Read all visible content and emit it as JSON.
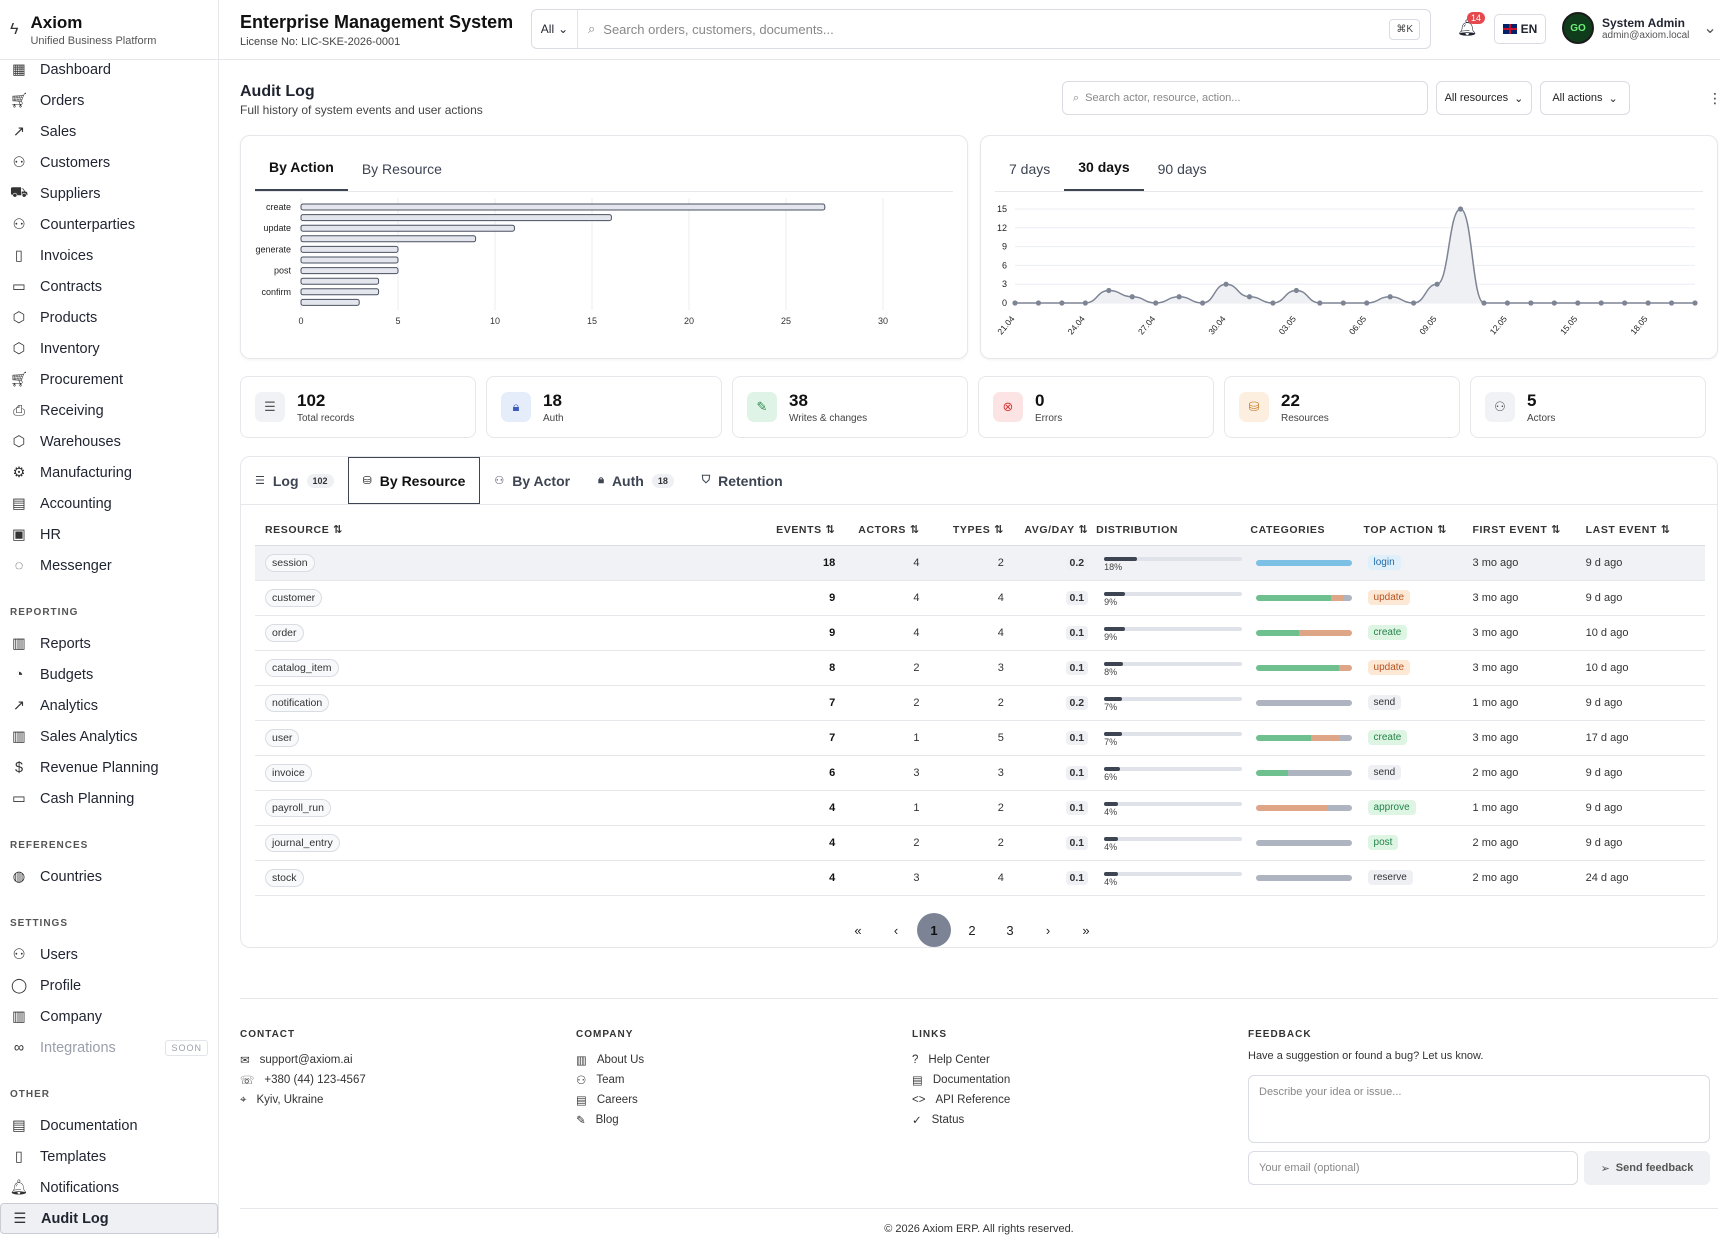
{
  "brand": {
    "name": "Axiom",
    "tagline": "Unified Business Platform"
  },
  "header": {
    "title": "Enterprise Management System",
    "license": "License No: LIC-SKE-2026-0001",
    "scope": "All",
    "search_placeholder": "Search orders, customers, documents...",
    "shortcut": "⌘K",
    "notifications": "14",
    "lang": "EN",
    "user_name": "System Admin",
    "user_email": "admin@axiom.local"
  },
  "nav": {
    "main": [
      "Dashboard",
      "Orders",
      "Sales",
      "Customers",
      "Suppliers",
      "Counterparties",
      "Invoices",
      "Contracts",
      "Products",
      "Inventory",
      "Procurement",
      "Receiving",
      "Warehouses",
      "Manufacturing",
      "Accounting",
      "HR",
      "Messenger"
    ],
    "reporting_label": "REPORTING",
    "reporting": [
      "Reports",
      "Budgets",
      "Analytics",
      "Sales Analytics",
      "Revenue Planning",
      "Cash Planning"
    ],
    "references_label": "REFERENCES",
    "references": [
      "Countries"
    ],
    "settings_label": "SETTINGS",
    "settings": [
      "Users",
      "Profile",
      "Company",
      "Integrations"
    ],
    "soon": "SOON",
    "other_label": "OTHER",
    "other": [
      "Documentation",
      "Templates",
      "Notifications",
      "Audit Log"
    ]
  },
  "page": {
    "title": "Audit Log",
    "subtitle": "Full history of system events and user actions",
    "search_placeholder": "Search actor, resource, action...",
    "resources_filter": "All resources",
    "actions_filter": "All actions"
  },
  "chart_tabs": {
    "left": [
      "By Action",
      "By Resource"
    ],
    "right": [
      "7 days",
      "30 days",
      "90 days"
    ]
  },
  "chart_data": [
    {
      "type": "bar",
      "orientation": "horizontal",
      "values": [
        27,
        16,
        11,
        9,
        5,
        5,
        5,
        4,
        4,
        3
      ],
      "categories": [
        "create",
        "",
        "update",
        "",
        "generate",
        "",
        "post",
        "",
        "confirm",
        ""
      ],
      "xlim": [
        0,
        30
      ],
      "xticks": [
        0,
        5,
        10,
        15,
        20,
        25,
        30
      ]
    },
    {
      "type": "area",
      "x": [
        "21.04",
        "",
        "",
        "24.04",
        "",
        "",
        "27.04",
        "",
        "",
        "30.04",
        "",
        "",
        "03.05",
        "",
        "",
        "06.05",
        "",
        "",
        "09.05",
        "",
        "",
        "12.05",
        "",
        "",
        "15.05",
        "",
        "",
        "18.05",
        "",
        ""
      ],
      "values": [
        0,
        0,
        0,
        0,
        2,
        1,
        0,
        1,
        0,
        3,
        1,
        0,
        2,
        0,
        0,
        0,
        1,
        0,
        3,
        15,
        0,
        0,
        0,
        0,
        0,
        0,
        0,
        0,
        0,
        0
      ],
      "ylim": [
        0,
        15
      ],
      "yticks": [
        0,
        3,
        6,
        9,
        12,
        15
      ]
    }
  ],
  "stats": [
    {
      "value": "102",
      "label": "Total records"
    },
    {
      "value": "18",
      "label": "Auth"
    },
    {
      "value": "38",
      "label": "Writes & changes"
    },
    {
      "value": "0",
      "label": "Errors"
    },
    {
      "value": "22",
      "label": "Resources"
    },
    {
      "value": "5",
      "label": "Actors"
    }
  ],
  "tabs": [
    {
      "label": "Log",
      "count": "102"
    },
    {
      "label": "By Resource",
      "count": ""
    },
    {
      "label": "By Actor",
      "count": ""
    },
    {
      "label": "Auth",
      "count": "18"
    },
    {
      "label": "Retention",
      "count": ""
    }
  ],
  "table": {
    "headers": [
      "RESOURCE",
      "EVENTS",
      "ACTORS",
      "TYPES",
      "AVG/DAY",
      "DISTRIBUTION",
      "CATEGORIES",
      "TOP ACTION",
      "FIRST EVENT",
      "LAST EVENT"
    ],
    "rows": [
      {
        "resource": "session",
        "events": "18",
        "actors": "4",
        "types": "2",
        "avg": "0.2",
        "pct": "18%",
        "pctv": 18,
        "action": "login",
        "atype": "blue",
        "first": "3 mo ago",
        "last": "9 d ago",
        "cats": [
          [
            "#7cc0e6",
            100
          ]
        ]
      },
      {
        "resource": "customer",
        "events": "9",
        "actors": "4",
        "types": "4",
        "avg": "0.1",
        "pct": "9%",
        "pctv": 9,
        "action": "update",
        "atype": "orange",
        "first": "3 mo ago",
        "last": "9 d ago",
        "cats": [
          [
            "#6fc08f",
            78
          ],
          [
            "#dea586",
            12
          ],
          [
            "#aeb4c0",
            10
          ]
        ]
      },
      {
        "resource": "order",
        "events": "9",
        "actors": "4",
        "types": "4",
        "avg": "0.1",
        "pct": "9%",
        "pctv": 9,
        "action": "create",
        "atype": "green",
        "first": "3 mo ago",
        "last": "10 d ago",
        "cats": [
          [
            "#6fc08f",
            44
          ],
          [
            "#dea586",
            56
          ]
        ]
      },
      {
        "resource": "catalog_item",
        "events": "8",
        "actors": "2",
        "types": "3",
        "avg": "0.1",
        "pct": "8%",
        "pctv": 8,
        "action": "update",
        "atype": "orange",
        "first": "3 mo ago",
        "last": "10 d ago",
        "cats": [
          [
            "#6fc08f",
            86
          ],
          [
            "#dea586",
            14
          ]
        ]
      },
      {
        "resource": "notification",
        "events": "7",
        "actors": "2",
        "types": "2",
        "avg": "0.2",
        "pct": "7%",
        "pctv": 7,
        "action": "send",
        "atype": "grey",
        "first": "1 mo ago",
        "last": "9 d ago",
        "cats": [
          [
            "#aeb4c0",
            100
          ]
        ]
      },
      {
        "resource": "user",
        "events": "7",
        "actors": "1",
        "types": "5",
        "avg": "0.1",
        "pct": "7%",
        "pctv": 7,
        "action": "create",
        "atype": "green",
        "first": "3 mo ago",
        "last": "17 d ago",
        "cats": [
          [
            "#6fc08f",
            57
          ],
          [
            "#dea586",
            29
          ],
          [
            "#aeb4c0",
            14
          ]
        ]
      },
      {
        "resource": "invoice",
        "events": "6",
        "actors": "3",
        "types": "3",
        "avg": "0.1",
        "pct": "6%",
        "pctv": 6,
        "action": "send",
        "atype": "grey",
        "first": "2 mo ago",
        "last": "9 d ago",
        "cats": [
          [
            "#6fc08f",
            33
          ],
          [
            "#aeb4c0",
            67
          ]
        ]
      },
      {
        "resource": "payroll_run",
        "events": "4",
        "actors": "1",
        "types": "2",
        "avg": "0.1",
        "pct": "4%",
        "pctv": 4,
        "action": "approve",
        "atype": "green",
        "first": "1 mo ago",
        "last": "9 d ago",
        "cats": [
          [
            "#dea586",
            75
          ],
          [
            "#aeb4c0",
            25
          ]
        ]
      },
      {
        "resource": "journal_entry",
        "events": "4",
        "actors": "2",
        "types": "2",
        "avg": "0.1",
        "pct": "4%",
        "pctv": 4,
        "action": "post",
        "atype": "green",
        "first": "2 mo ago",
        "last": "9 d ago",
        "cats": [
          [
            "#aeb4c0",
            100
          ]
        ]
      },
      {
        "resource": "stock",
        "events": "4",
        "actors": "3",
        "types": "4",
        "avg": "0.1",
        "pct": "4%",
        "pctv": 4,
        "action": "reserve",
        "atype": "grey",
        "first": "2 mo ago",
        "last": "24 d ago",
        "cats": [
          [
            "#aeb4c0",
            100
          ]
        ]
      }
    ]
  },
  "pager": [
    "1",
    "2",
    "3"
  ],
  "footer": {
    "contact_label": "CONTACT",
    "contact": [
      "support@axiom.ai",
      "+380 (44) 123-4567",
      "Kyiv, Ukraine"
    ],
    "company_label": "COMPANY",
    "company": [
      "About Us",
      "Team",
      "Careers",
      "Blog"
    ],
    "links_label": "LINKS",
    "links": [
      "Help Center",
      "Documentation",
      "API Reference",
      "Status"
    ],
    "feedback_label": "FEEDBACK",
    "feedback_text": "Have a suggestion or found a bug? Let us know.",
    "feedback_placeholder": "Describe your idea or issue...",
    "email_placeholder": "Your email (optional)",
    "send": "Send feedback",
    "copyright": "© 2026 Axiom ERP. All rights reserved."
  }
}
